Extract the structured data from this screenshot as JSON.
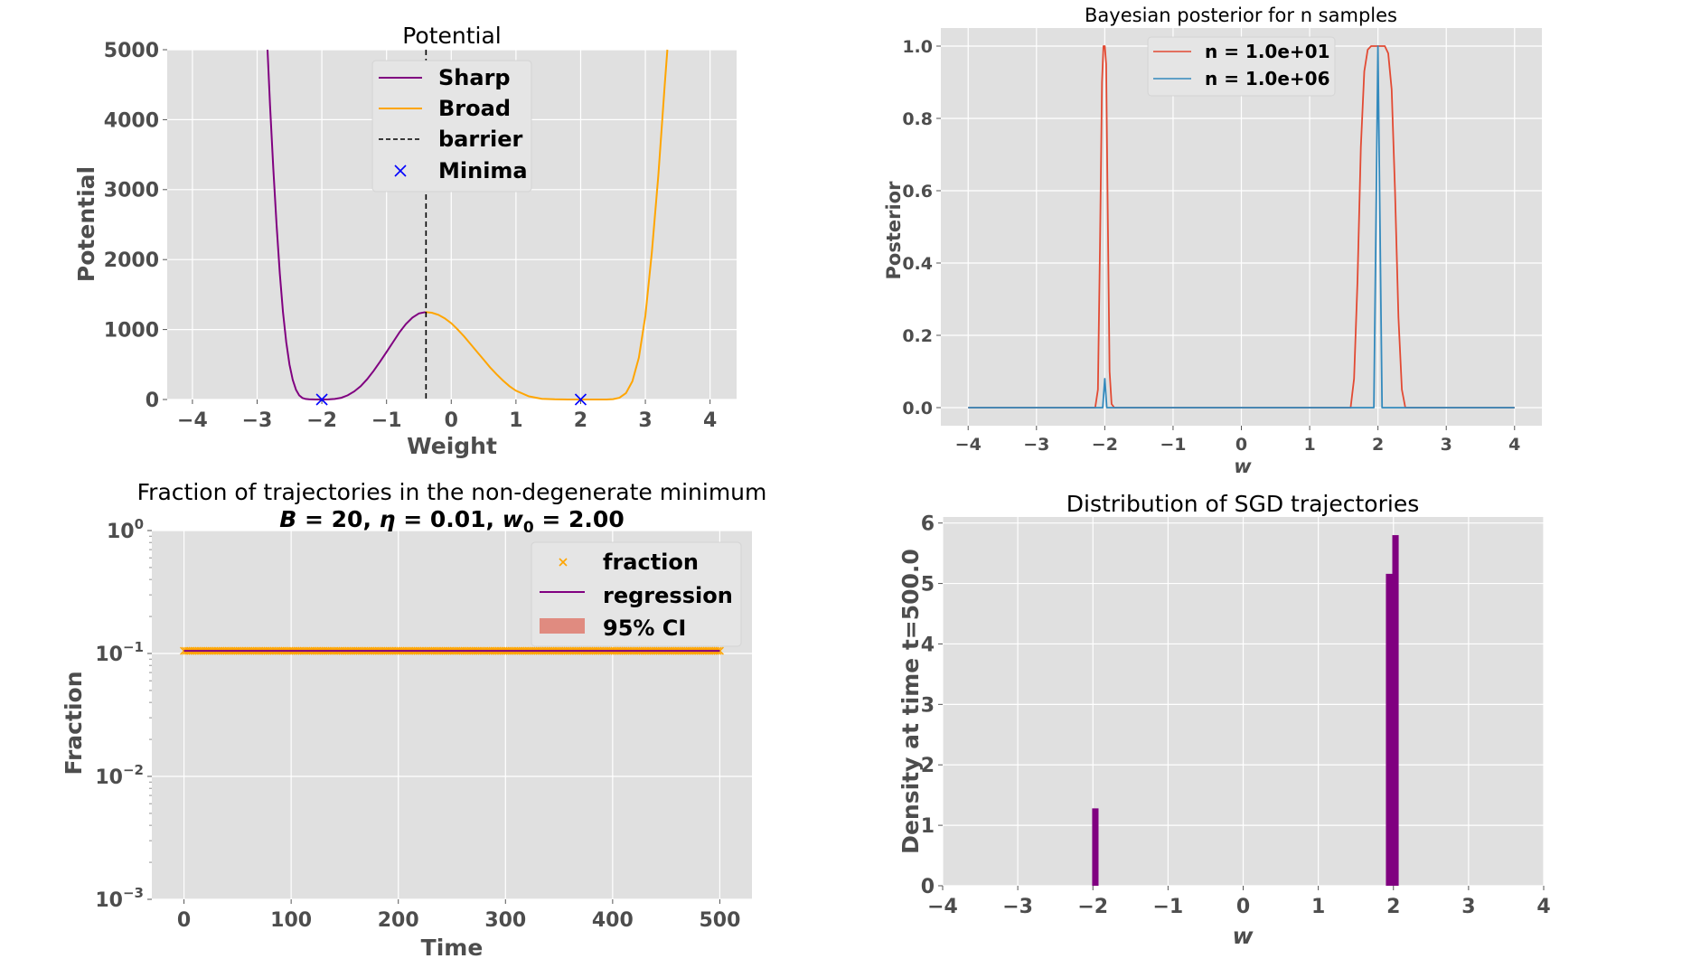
{
  "chart_data": [
    {
      "id": "potential",
      "type": "line",
      "title": "Potential",
      "xlabel": "Weight",
      "ylabel": "Potential",
      "xlim": [
        -4.39,
        4.41
      ],
      "ylim": [
        0,
        5000
      ],
      "xticks": [
        -4,
        -3,
        -2,
        -1,
        0,
        1,
        2,
        3,
        4
      ],
      "xtick_labels": [
        "−4",
        "−3",
        "−2",
        "−1",
        "0",
        "1",
        "2",
        "3",
        "4"
      ],
      "yticks": [
        0,
        1000,
        2000,
        3000,
        4000,
        5000
      ],
      "ytick_labels": [
        "0",
        "1000",
        "2000",
        "3000",
        "4000",
        "5000"
      ],
      "grid": true,
      "legend_position": "top-center",
      "series": [
        {
          "name": "Sharp",
          "color": "#800080",
          "style": "solid",
          "x": [
            -2.84,
            -2.8,
            -2.75,
            -2.7,
            -2.65,
            -2.6,
            -2.55,
            -2.5,
            -2.45,
            -2.4,
            -2.35,
            -2.3,
            -2.25,
            -2.2,
            -2.1,
            -2.0,
            -1.9,
            -1.8,
            -1.7,
            -1.6,
            -1.5,
            -1.4,
            -1.3,
            -1.2,
            -1.1,
            -1.0,
            -0.9,
            -0.8,
            -0.7,
            -0.6,
            -0.5,
            -0.4
          ],
          "y": [
            5000,
            4200,
            3300,
            2500,
            1800,
            1250,
            820,
            500,
            280,
            140,
            60,
            22,
            8,
            2,
            0,
            0,
            1,
            8,
            25,
            60,
            115,
            190,
            290,
            410,
            540,
            680,
            820,
            960,
            1080,
            1170,
            1230,
            1250
          ]
        },
        {
          "name": "Broad",
          "color": "#FFA500",
          "style": "solid",
          "x": [
            -0.4,
            -0.3,
            -0.2,
            -0.1,
            0.0,
            0.1,
            0.2,
            0.3,
            0.4,
            0.5,
            0.6,
            0.7,
            0.8,
            0.9,
            1.0,
            1.2,
            1.4,
            1.6,
            1.8,
            2.0,
            2.2,
            2.4,
            2.5,
            2.6,
            2.7,
            2.8,
            2.9,
            3.0,
            3.1,
            3.2,
            3.3,
            3.34
          ],
          "y": [
            1250,
            1240,
            1210,
            1160,
            1090,
            1000,
            900,
            790,
            680,
            570,
            460,
            360,
            270,
            190,
            125,
            45,
            10,
            2,
            0,
            0,
            0,
            0,
            5,
            25,
            90,
            260,
            600,
            1200,
            2100,
            3200,
            4500,
            5000
          ]
        },
        {
          "name": "barrier",
          "color": "#000000",
          "style": "dashed",
          "x_value": -0.39
        }
      ],
      "markers": {
        "name": "Minima",
        "color": "#0000FF",
        "symbol": "x",
        "points": [
          [
            -2.0,
            0
          ],
          [
            2.0,
            0
          ]
        ]
      }
    },
    {
      "id": "posterior",
      "type": "line",
      "title": "Bayesian posterior for n samples",
      "xlabel": "w",
      "ylabel": "Posterior",
      "xlim": [
        -4.4,
        4.4
      ],
      "ylim": [
        -0.05,
        1.05
      ],
      "xticks": [
        -4,
        -3,
        -2,
        -1,
        0,
        1,
        2,
        3,
        4
      ],
      "xtick_labels": [
        "−4",
        "−3",
        "−2",
        "−1",
        "0",
        "1",
        "2",
        "3",
        "4"
      ],
      "yticks": [
        0.0,
        0.2,
        0.4,
        0.6,
        0.8,
        1.0
      ],
      "ytick_labels": [
        "0.0",
        "0.2",
        "0.4",
        "0.6",
        "0.8",
        "1.0"
      ],
      "grid": true,
      "legend_position": "top-center",
      "series": [
        {
          "name": "n = 1.0e+01",
          "color": "#E24A33",
          "x": [
            -4,
            -2.14,
            -2.1,
            -2.07,
            -2.04,
            -2.02,
            -2.0,
            -1.98,
            -1.96,
            -1.93,
            -1.9,
            -1.86,
            1.6,
            1.65,
            1.7,
            1.75,
            1.8,
            1.85,
            1.9,
            1.95,
            2.0,
            2.05,
            2.1,
            2.15,
            2.2,
            2.25,
            2.3,
            2.35,
            2.4,
            4
          ],
          "y": [
            0,
            0,
            0.05,
            0.45,
            0.9,
            1.0,
            1.0,
            0.95,
            0.6,
            0.1,
            0.01,
            0,
            0,
            0.08,
            0.35,
            0.72,
            0.93,
            0.99,
            1.0,
            1.0,
            1.0,
            1.0,
            1.0,
            0.98,
            0.88,
            0.6,
            0.25,
            0.05,
            0,
            0
          ]
        },
        {
          "name": "n = 1.0e+06",
          "color": "#348ABD",
          "x": [
            -4,
            -2.03,
            -2.0,
            -1.97,
            1.94,
            1.97,
            2.0,
            2.03,
            2.06,
            4
          ],
          "y": [
            0,
            0,
            0.08,
            0,
            0,
            0.5,
            1.0,
            0.5,
            0,
            0
          ]
        }
      ]
    },
    {
      "id": "fraction",
      "type": "line",
      "title": "Fraction of trajectories in the non-degenerate minimum",
      "subtitle": "B = 20, η = 0.01, w₀ = 2.00",
      "xlabel": "Time",
      "ylabel": "Fraction",
      "yscale": "log",
      "xlim": [
        -30,
        530
      ],
      "ylim": [
        0.001,
        1
      ],
      "xticks": [
        0,
        100,
        200,
        300,
        400,
        500
      ],
      "xtick_labels": [
        "0",
        "100",
        "200",
        "300",
        "400",
        "500"
      ],
      "yticks": [
        0.001,
        0.01,
        0.1,
        1
      ],
      "ytick_labels": [
        {
          "base": "10",
          "exp": "−3"
        },
        {
          "base": "10",
          "exp": "−2"
        },
        {
          "base": "10",
          "exp": "−1"
        },
        {
          "base": "10",
          "exp": "0"
        }
      ],
      "grid": true,
      "legend_position": "top-right",
      "series": [
        {
          "name": "fraction",
          "type": "scatter",
          "color": "#FFA500",
          "symbol": "x",
          "x_range": [
            0,
            500
          ],
          "y": 0.105
        },
        {
          "name": "regression",
          "type": "line",
          "color": "#800080",
          "x": [
            0,
            500
          ],
          "y": [
            0.105,
            0.105
          ]
        },
        {
          "name": "95% CI",
          "type": "band",
          "color": "#E08B80",
          "x": [
            0,
            500
          ],
          "lower": [
            0.1045,
            0.1045
          ],
          "upper": [
            0.1055,
            0.1055
          ]
        }
      ]
    },
    {
      "id": "histogram",
      "type": "bar",
      "title": "Distribution of SGD trajectories",
      "xlabel": "w",
      "ylabel": "Density at time t=500.0",
      "xlim": [
        -4,
        4
      ],
      "ylim": [
        0,
        6.1
      ],
      "xticks": [
        -4,
        -3,
        -2,
        -1,
        0,
        1,
        2,
        3,
        4
      ],
      "xtick_labels": [
        "−4",
        "−3",
        "−2",
        "−1",
        "0",
        "1",
        "2",
        "3",
        "4"
      ],
      "yticks": [
        0,
        1,
        2,
        3,
        4,
        5,
        6
      ],
      "ytick_labels": [
        "0",
        "1",
        "2",
        "3",
        "4",
        "5",
        "6"
      ],
      "grid": true,
      "color": "#800080",
      "bins": [
        {
          "x0": -2.01,
          "x1": -1.925,
          "value": 1.28
        },
        {
          "x0": 1.9,
          "x1": 1.985,
          "value": 5.16
        },
        {
          "x0": 1.985,
          "x1": 2.07,
          "value": 5.8
        }
      ]
    }
  ]
}
